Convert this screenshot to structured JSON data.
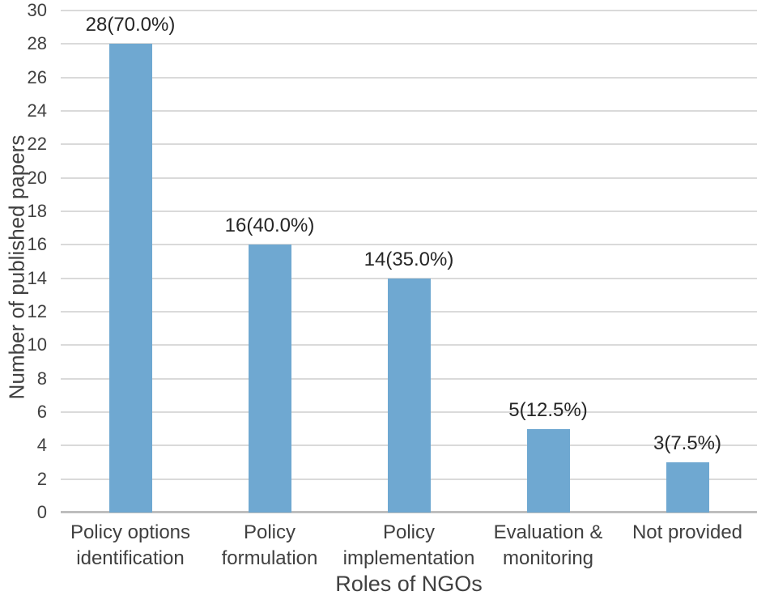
{
  "chart_data": {
    "type": "bar",
    "title": "",
    "xlabel": "Roles of NGOs",
    "ylabel": "Number of published papers",
    "categories": [
      "Policy options identification",
      "Policy formulation",
      "Policy implementation",
      "Evaluation & monitoring",
      "Not provided"
    ],
    "values": [
      28,
      16,
      14,
      5,
      3
    ],
    "bar_labels": [
      "28(70.0%)",
      "16(40.0%)",
      "14(35.0%)",
      "5(12.5%)",
      "3(7.5%)"
    ],
    "percentages": [
      70.0,
      40.0,
      35.0,
      12.5,
      7.5
    ],
    "ylim": [
      0,
      30
    ],
    "yticks": [
      0,
      2,
      4,
      6,
      8,
      10,
      12,
      14,
      16,
      18,
      20,
      22,
      24,
      26,
      28,
      30
    ],
    "grid": true,
    "legend": "none",
    "bar_color": "#6FA8D1",
    "gridline_color": "#DADADA",
    "axis_line_color": "#BEBEBE",
    "text_color": "#404040",
    "label_color": "#262626"
  }
}
